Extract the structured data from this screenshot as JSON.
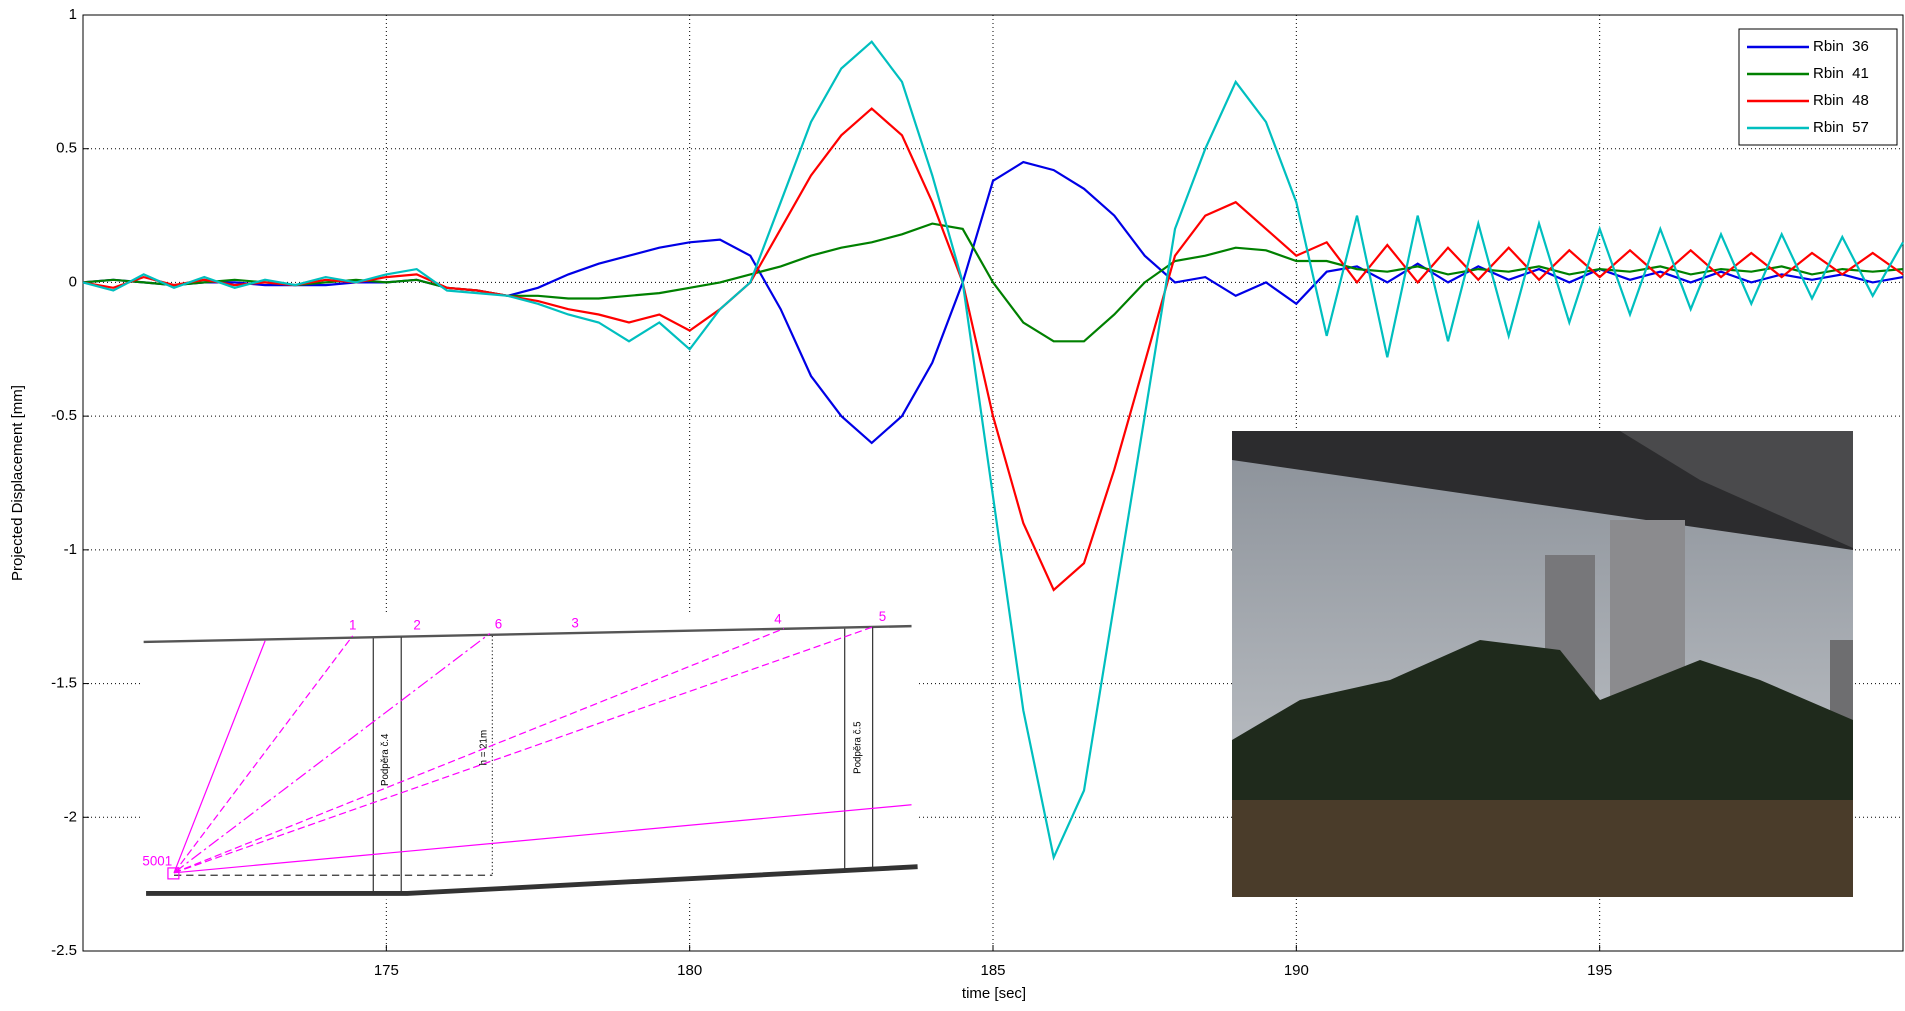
{
  "chart_data": {
    "type": "line",
    "x_label": "time [sec]",
    "y_label": "Projected Displacement [mm]",
    "x": [
      170,
      170.5,
      171,
      171.5,
      172,
      172.5,
      173,
      173.5,
      174,
      174.5,
      175,
      175.5,
      176,
      176.5,
      177,
      177.5,
      178,
      178.5,
      179,
      179.5,
      180,
      180.5,
      181,
      181.5,
      182,
      182.5,
      183,
      183.5,
      184,
      184.5,
      185,
      185.5,
      186,
      186.5,
      187,
      187.5,
      188,
      188.5,
      189,
      189.5,
      190,
      190.5,
      191,
      191.5,
      192,
      192.5,
      193,
      193.5,
      194,
      194.5,
      195,
      195.5,
      196,
      196.5,
      197,
      197.5,
      198,
      198.5,
      199,
      199.5,
      200
    ],
    "series": [
      {
        "name": "Rbin  36",
        "color": "#0000e6",
        "values": [
          0,
          0.01,
          0,
          -0.01,
          0,
          0,
          -0.01,
          -0.01,
          -0.01,
          0,
          0,
          0.01,
          -0.02,
          -0.03,
          -0.05,
          -0.02,
          0.03,
          0.07,
          0.1,
          0.13,
          0.15,
          0.16,
          0.1,
          -0.1,
          -0.35,
          -0.5,
          -0.6,
          -0.5,
          -0.3,
          0.0,
          0.38,
          0.45,
          0.42,
          0.35,
          0.25,
          0.1,
          0.0,
          0.02,
          -0.05,
          0.0,
          -0.08,
          0.04,
          0.06,
          0.0,
          0.07,
          0.0,
          0.06,
          0.01,
          0.05,
          0.0,
          0.05,
          0.01,
          0.04,
          0.0,
          0.04,
          0.0,
          0.03,
          0.01,
          0.03,
          0.0,
          0.02
        ]
      },
      {
        "name": "Rbin  41",
        "color": "#008000",
        "values": [
          0,
          0.01,
          0,
          -0.01,
          0,
          0.01,
          0,
          -0.01,
          0,
          0.01,
          0,
          0.01,
          -0.02,
          -0.03,
          -0.05,
          -0.05,
          -0.06,
          -0.06,
          -0.05,
          -0.04,
          -0.02,
          0.0,
          0.03,
          0.06,
          0.1,
          0.13,
          0.15,
          0.18,
          0.22,
          0.2,
          0.0,
          -0.15,
          -0.22,
          -0.22,
          -0.12,
          0.0,
          0.08,
          0.1,
          0.13,
          0.12,
          0.08,
          0.08,
          0.05,
          0.04,
          0.06,
          0.03,
          0.05,
          0.04,
          0.06,
          0.03,
          0.05,
          0.04,
          0.06,
          0.03,
          0.05,
          0.04,
          0.06,
          0.03,
          0.05,
          0.04,
          0.05
        ]
      },
      {
        "name": "Rbin  48",
        "color": "#ff0000",
        "values": [
          0,
          -0.02,
          0.02,
          -0.01,
          0.01,
          -0.01,
          0,
          -0.01,
          0.01,
          0,
          0.02,
          0.03,
          -0.02,
          -0.03,
          -0.05,
          -0.07,
          -0.1,
          -0.12,
          -0.15,
          -0.12,
          -0.18,
          -0.1,
          0.0,
          0.2,
          0.4,
          0.55,
          0.65,
          0.55,
          0.3,
          0.0,
          -0.5,
          -0.9,
          -1.15,
          -1.05,
          -0.7,
          -0.3,
          0.1,
          0.25,
          0.3,
          0.2,
          0.1,
          0.15,
          0.0,
          0.14,
          0.0,
          0.13,
          0.01,
          0.13,
          0.01,
          0.12,
          0.02,
          0.12,
          0.02,
          0.12,
          0.02,
          0.11,
          0.02,
          0.11,
          0.03,
          0.11,
          0.03
        ]
      },
      {
        "name": "Rbin  57",
        "color": "#00bfbf",
        "values": [
          0,
          -0.03,
          0.03,
          -0.02,
          0.02,
          -0.02,
          0.01,
          -0.01,
          0.02,
          0,
          0.03,
          0.05,
          -0.03,
          -0.04,
          -0.05,
          -0.08,
          -0.12,
          -0.15,
          -0.22,
          -0.15,
          -0.25,
          -0.1,
          0.0,
          0.3,
          0.6,
          0.8,
          0.9,
          0.75,
          0.4,
          0.0,
          -0.8,
          -1.6,
          -2.15,
          -1.9,
          -1.2,
          -0.5,
          0.2,
          0.5,
          0.75,
          0.6,
          0.3,
          -0.2,
          0.25,
          -0.28,
          0.25,
          -0.22,
          0.22,
          -0.2,
          0.22,
          -0.15,
          0.2,
          -0.12,
          0.2,
          -0.1,
          0.18,
          -0.08,
          0.18,
          -0.06,
          0.17,
          -0.05,
          0.15
        ]
      }
    ],
    "xlim": [
      170,
      200
    ],
    "xticks": [
      175,
      180,
      185,
      190,
      195
    ],
    "ylim": [
      -2.5,
      1
    ],
    "yticks": [
      -2.5,
      -2,
      -1.5,
      -1,
      -0.5,
      0,
      0.5,
      1
    ],
    "grid": true,
    "legend": "upper right"
  },
  "diagram": {
    "point_labels": [
      "1",
      "2",
      "6",
      "3",
      "4",
      "5"
    ],
    "station_label": "5001",
    "pier_labels": [
      "Podpěra č.4",
      "Podpěra č.5"
    ],
    "height_label": "h = 21m"
  }
}
